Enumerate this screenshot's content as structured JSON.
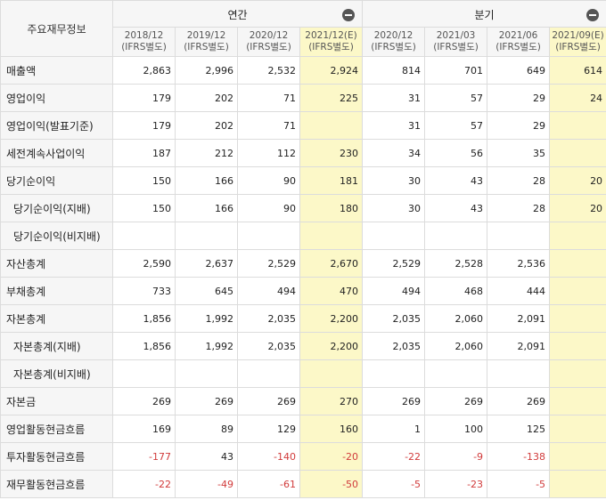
{
  "corner_label": "주요재무정보",
  "groups": {
    "annual": "연간",
    "quarterly": "분기"
  },
  "columns": [
    {
      "period": "2018/12",
      "basis": "(IFRS별도)",
      "estimate": false
    },
    {
      "period": "2019/12",
      "basis": "(IFRS별도)",
      "estimate": false
    },
    {
      "period": "2020/12",
      "basis": "(IFRS별도)",
      "estimate": false
    },
    {
      "period": "2021/12(E)",
      "basis": "(IFRS별도)",
      "estimate": true
    },
    {
      "period": "2020/12",
      "basis": "(IFRS별도)",
      "estimate": false
    },
    {
      "period": "2021/03",
      "basis": "(IFRS별도)",
      "estimate": false
    },
    {
      "period": "2021/06",
      "basis": "(IFRS별도)",
      "estimate": false
    },
    {
      "period": "2021/09(E)",
      "basis": "(IFRS별도)",
      "estimate": true
    }
  ],
  "rows": [
    {
      "label": "매출액",
      "indent": false,
      "values": [
        "2,863",
        "2,996",
        "2,532",
        "2,924",
        "814",
        "701",
        "649",
        "614"
      ]
    },
    {
      "label": "영업이익",
      "indent": false,
      "values": [
        "179",
        "202",
        "71",
        "225",
        "31",
        "57",
        "29",
        "24"
      ]
    },
    {
      "label": "영업이익(발표기준)",
      "indent": false,
      "values": [
        "179",
        "202",
        "71",
        "",
        "31",
        "57",
        "29",
        ""
      ]
    },
    {
      "label": "세전계속사업이익",
      "indent": false,
      "values": [
        "187",
        "212",
        "112",
        "230",
        "34",
        "56",
        "35",
        ""
      ]
    },
    {
      "label": "당기순이익",
      "indent": false,
      "values": [
        "150",
        "166",
        "90",
        "181",
        "30",
        "43",
        "28",
        "20"
      ]
    },
    {
      "label": "당기순이익(지배)",
      "indent": true,
      "values": [
        "150",
        "166",
        "90",
        "180",
        "30",
        "43",
        "28",
        "20"
      ]
    },
    {
      "label": "당기순이익(비지배)",
      "indent": true,
      "values": [
        "",
        "",
        "",
        "",
        "",
        "",
        "",
        ""
      ]
    },
    {
      "label": "자산총계",
      "indent": false,
      "values": [
        "2,590",
        "2,637",
        "2,529",
        "2,670",
        "2,529",
        "2,528",
        "2,536",
        ""
      ]
    },
    {
      "label": "부채총계",
      "indent": false,
      "values": [
        "733",
        "645",
        "494",
        "470",
        "494",
        "468",
        "444",
        ""
      ]
    },
    {
      "label": "자본총계",
      "indent": false,
      "values": [
        "1,856",
        "1,992",
        "2,035",
        "2,200",
        "2,035",
        "2,060",
        "2,091",
        ""
      ]
    },
    {
      "label": "자본총계(지배)",
      "indent": true,
      "values": [
        "1,856",
        "1,992",
        "2,035",
        "2,200",
        "2,035",
        "2,060",
        "2,091",
        ""
      ]
    },
    {
      "label": "자본총계(비지배)",
      "indent": true,
      "values": [
        "",
        "",
        "",
        "",
        "",
        "",
        "",
        ""
      ]
    },
    {
      "label": "자본금",
      "indent": false,
      "values": [
        "269",
        "269",
        "269",
        "270",
        "269",
        "269",
        "269",
        ""
      ]
    },
    {
      "label": "영업활동현금흐름",
      "indent": false,
      "values": [
        "169",
        "89",
        "129",
        "160",
        "1",
        "100",
        "125",
        ""
      ]
    },
    {
      "label": "투자활동현금흐름",
      "indent": false,
      "values": [
        "-177",
        "43",
        "-140",
        "-20",
        "-22",
        "-9",
        "-138",
        ""
      ]
    },
    {
      "label": "재무활동현금흐름",
      "indent": false,
      "values": [
        "-22",
        "-49",
        "-61",
        "-50",
        "-5",
        "-23",
        "-5",
        ""
      ]
    }
  ],
  "colors": {
    "estimate_bg": "#fcf8c8",
    "negative": "#d13b3b",
    "header_bg": "#f6f6f6",
    "border": "#dcdcdc"
  }
}
